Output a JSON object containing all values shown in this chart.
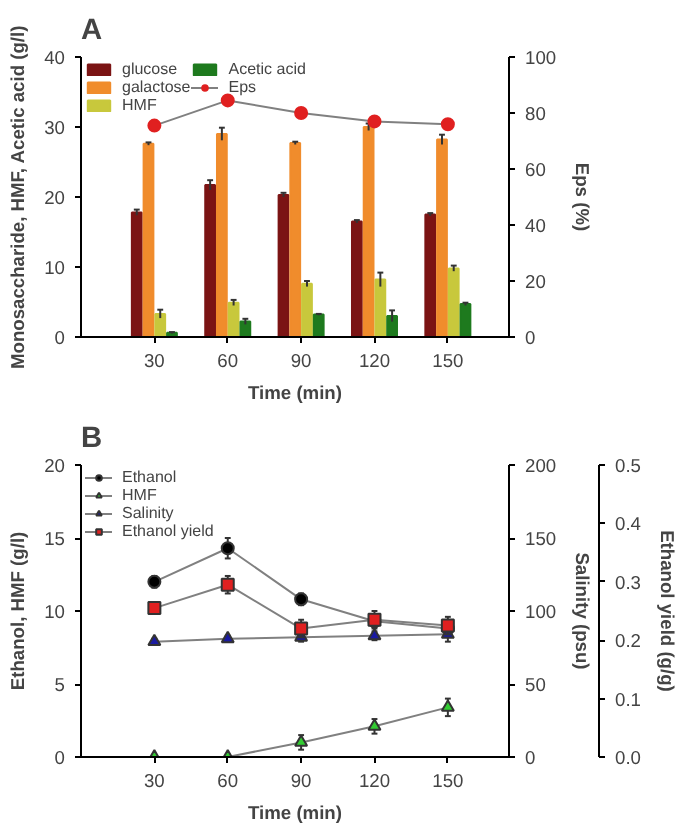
{
  "chart_data": [
    {
      "type": "bar",
      "title": "A",
      "xlabel": "Time (min)",
      "ylabel": "Monosaccharide, HMF, Acetic acid (g/l)",
      "y2label": "Eps (%)",
      "x": [
        30,
        60,
        90,
        120,
        150
      ],
      "xlim": [
        0,
        175
      ],
      "xticks": [
        30,
        60,
        90,
        120,
        150
      ],
      "ylim": [
        0,
        40
      ],
      "yticks": [
        0,
        10,
        20,
        30,
        40
      ],
      "y2lim": [
        0,
        100
      ],
      "y2ticks": [
        0,
        20,
        40,
        60,
        80,
        100
      ],
      "grid": false,
      "legend": "top left",
      "series": [
        {
          "name": "glucose",
          "color": "#7b1414",
          "values": [
            17.8,
            21.7,
            20.3,
            16.5,
            17.5
          ],
          "errors": [
            0.4,
            0.7,
            0.3,
            0.2,
            0.2
          ]
        },
        {
          "name": "galactose",
          "color": "#f08c2c",
          "values": [
            27.6,
            29.0,
            27.7,
            30.0,
            28.2
          ],
          "errors": [
            0.2,
            0.9,
            0.2,
            0.5,
            0.7
          ]
        },
        {
          "name": "HMF",
          "color": "#c8c83c",
          "values": [
            3.3,
            4.9,
            7.6,
            8.2,
            9.8
          ],
          "errors": [
            0.6,
            0.4,
            0.4,
            1.0,
            0.4
          ]
        },
        {
          "name": "Acetic acid",
          "color": "#1e7a1e",
          "values": [
            0.6,
            2.2,
            3.2,
            3.0,
            4.7
          ],
          "errors": [
            0.1,
            0.4,
            0.1,
            0.8,
            0.2
          ]
        },
        {
          "name": "Eps",
          "type": "line",
          "axis": "y2",
          "color": "#e02020",
          "marker": "circle",
          "values": [
            75.5,
            84.5,
            80,
            77,
            76
          ]
        }
      ]
    },
    {
      "type": "line",
      "title": "B",
      "xlabel": "Time (min)",
      "ylabel": "Ethanol, HMF (g/l)",
      "y2label": "Salinity (psu)",
      "y3label": "Ethanol yield (g/g)",
      "x": [
        30,
        60,
        90,
        120,
        150
      ],
      "xlim": [
        0,
        175
      ],
      "xticks": [
        30,
        60,
        90,
        120,
        150
      ],
      "ylim": [
        0,
        20
      ],
      "yticks": [
        0,
        5,
        10,
        15,
        20
      ],
      "y2lim": [
        0,
        200
      ],
      "y2ticks": [
        0,
        50,
        100,
        150,
        200
      ],
      "y3lim": [
        0,
        0.5
      ],
      "y3ticks": [
        {
          "value": 0,
          "label": "0.0"
        },
        0.1,
        0.2,
        0.3,
        0.4,
        0.5
      ],
      "grid": false,
      "legend": "top left",
      "series": [
        {
          "name": "Ethanol",
          "color": "#000000",
          "marker": "circle",
          "values": [
            12.0,
            14.3,
            10.8,
            9.3,
            8.8
          ],
          "errors": [
            0.4,
            0.7,
            0.4,
            0.4,
            0.4
          ]
        },
        {
          "name": "HMF",
          "color": "#33cc33",
          "marker": "triangle",
          "values": [
            0,
            0,
            1.0,
            2.1,
            3.4
          ],
          "errors": [
            null,
            null,
            0.5,
            0.5,
            0.6
          ]
        },
        {
          "name": "Salinity",
          "axis": "y2",
          "color": "#1a1aa0",
          "marker": "triangle",
          "values": [
            79,
            81,
            82,
            83,
            84
          ],
          "errors": [
            2,
            2,
            3,
            3,
            5
          ]
        },
        {
          "name": "Ethanol yield",
          "axis": "y3",
          "color": "#e02020",
          "marker": "square",
          "values": [
            0.255,
            0.295,
            0.22,
            0.235,
            0.225
          ],
          "errors": [
            0.01,
            0.015,
            0.015,
            0.015,
            0.015
          ]
        }
      ]
    }
  ]
}
